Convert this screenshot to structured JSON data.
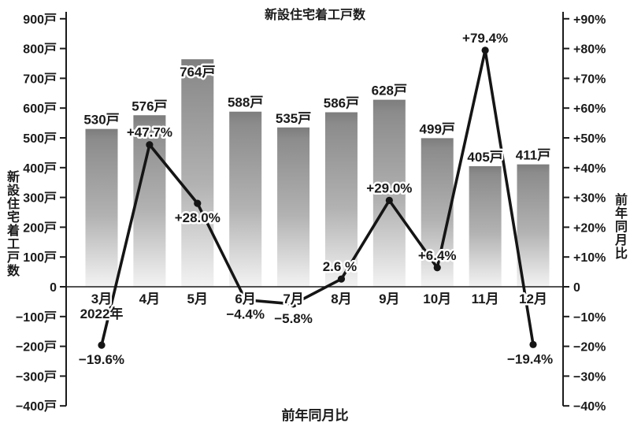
{
  "chart_data": {
    "type": "combo_bar_line",
    "title": "新設住宅着工戸数",
    "footer_label": "前年同月比",
    "year_label": "2022年",
    "categories": [
      "3月",
      "4月",
      "5月",
      "6月",
      "7月",
      "8月",
      "9月",
      "10月",
      "11月",
      "12月"
    ],
    "bars": {
      "name": "新設住宅着工戸数",
      "values": [
        530,
        576,
        764,
        588,
        535,
        586,
        628,
        499,
        405,
        411
      ],
      "labels": [
        "530戸",
        "576戸",
        "764戸",
        "588戸",
        "535戸",
        "586戸",
        "628戸",
        "499戸",
        "405戸",
        "411戸"
      ],
      "label_inside": [
        false,
        false,
        true,
        false,
        false,
        false,
        false,
        false,
        false,
        false
      ],
      "gradient_stops": [
        {
          "offset": "0%",
          "color": "#7d7d7d"
        },
        {
          "offset": "7%",
          "color": "#8c8c8c"
        },
        {
          "offset": "55%",
          "color": "#b2b2b2"
        },
        {
          "offset": "100%",
          "color": "#f3f3f3"
        }
      ]
    },
    "line": {
      "name": "前年同月比",
      "values": [
        -19.6,
        47.7,
        28.0,
        -4.4,
        -5.8,
        2.6,
        29.0,
        6.4,
        79.4,
        -19.4
      ],
      "labels": [
        "−19.6%",
        "+47.7%",
        "+28.0%",
        "−4.4%",
        "−5.8%",
        "2.6 %",
        "+29.0%",
        "+6.4%",
        "+79.4%",
        "−19.4%"
      ],
      "label_pos": [
        "below",
        "above",
        "below",
        "below",
        "below",
        "above",
        "above",
        "above",
        "above",
        "below"
      ],
      "label_dx": [
        0,
        0,
        0,
        0,
        0,
        -2,
        0,
        0,
        0,
        -4
      ],
      "color": "#151515"
    },
    "left_axis": {
      "title": "新設住宅着工戸数",
      "min": -400,
      "max": 900,
      "tick_values": [
        900,
        800,
        700,
        600,
        500,
        400,
        300,
        200,
        100,
        0,
        -100,
        -200,
        -300,
        -400
      ],
      "tick_labels": [
        "900戸",
        "800戸",
        "700戸",
        "600戸",
        "500戸",
        "400戸",
        "300戸",
        "200戸",
        "100戸",
        "0",
        "−100戸",
        "−200戸",
        "−300戸",
        "−400戸"
      ]
    },
    "right_axis": {
      "title": "前年同月比",
      "min": -40,
      "max": 90,
      "tick_values": [
        90,
        80,
        70,
        60,
        50,
        40,
        30,
        20,
        10,
        0,
        -10,
        -20,
        -30,
        -40
      ],
      "tick_labels": [
        "+90%",
        "+80%",
        "+70%",
        "+60%",
        "+50%",
        "+40%",
        "+30%",
        "+20%",
        "+10%",
        "0",
        "−10%",
        "−20%",
        "−30%",
        "−40%"
      ]
    },
    "grid": "zero-line-only",
    "legend_position": "none",
    "colors": {
      "text": "#1a1a1a",
      "axis": "#1a1a1a",
      "background": "#ffffff",
      "line": "#151515",
      "bar_top": "#8c8c8c",
      "bar_bottom": "#f3f3f3"
    }
  }
}
